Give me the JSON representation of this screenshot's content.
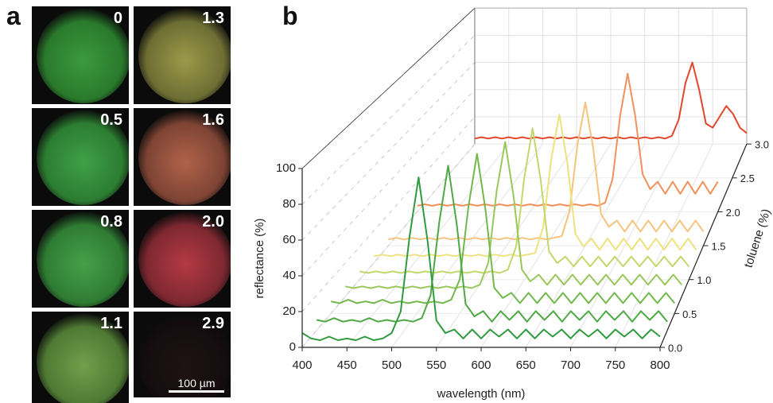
{
  "panel_labels": [
    "a",
    "b"
  ],
  "micrographs": {
    "labels": [
      "0",
      "1.3",
      "0.5",
      "1.6",
      "0.8",
      "2.0",
      "1.1",
      "2.9"
    ],
    "scale_bar": "100 µm"
  },
  "chart_data": {
    "type": "waterfall",
    "xlabel": "wavelength (nm)",
    "ylabel": "reflectance (%)",
    "zlabel": "toluene (%)",
    "xlim": [
      400,
      800
    ],
    "ylim": [
      0,
      100
    ],
    "zlim": [
      0,
      3
    ],
    "xticks": [
      400,
      450,
      500,
      550,
      600,
      650,
      700,
      750,
      800
    ],
    "yticks": [
      0,
      20,
      40,
      60,
      80,
      100
    ],
    "zticks": [
      {
        "value": 0,
        "label": "0.0"
      },
      0.5,
      {
        "value": 1,
        "label": "1.0"
      },
      1.5,
      {
        "value": 2,
        "label": "2.0"
      },
      2.5,
      {
        "value": 3,
        "label": "3.0"
      }
    ],
    "grid": true,
    "x": [
      400,
      410,
      420,
      430,
      440,
      450,
      460,
      470,
      480,
      490,
      500,
      510,
      520,
      530,
      540,
      550,
      560,
      570,
      580,
      590,
      600,
      610,
      620,
      630,
      640,
      650,
      660,
      670,
      680,
      690,
      700,
      710,
      720,
      730,
      740,
      750,
      760,
      770,
      780,
      790,
      800
    ],
    "series": [
      {
        "z": 0,
        "color": "#2f9a3e",
        "values": [
          8,
          5,
          4,
          6,
          4,
          5,
          4,
          6,
          4,
          5,
          8,
          20,
          62,
          95,
          60,
          15,
          8,
          10,
          5,
          10,
          5,
          10,
          6,
          10,
          5,
          10,
          5,
          10,
          6,
          10,
          5,
          10,
          6,
          10,
          5,
          10,
          6,
          10,
          5,
          10,
          6
        ]
      },
      {
        "z": 0.25,
        "color": "#4ea845",
        "values": [
          6,
          5,
          7,
          5,
          6,
          5,
          7,
          5,
          6,
          5,
          6,
          5,
          7,
          20,
          62,
          94,
          60,
          15,
          8,
          11,
          5,
          11,
          6,
          11,
          5,
          11,
          6,
          11,
          5,
          11,
          6,
          11,
          5,
          11,
          6,
          11,
          5,
          11,
          6,
          11,
          5
        ]
      },
      {
        "z": 0.5,
        "color": "#72b84c",
        "values": [
          7,
          6,
          8,
          6,
          7,
          6,
          8,
          6,
          7,
          6,
          7,
          6,
          7,
          6,
          8,
          20,
          62,
          93,
          60,
          15,
          9,
          12,
          6,
          12,
          6,
          12,
          6,
          12,
          6,
          12,
          6,
          12,
          6,
          12,
          6,
          12,
          6,
          12,
          6,
          12,
          6
        ]
      },
      {
        "z": 0.75,
        "color": "#98c85a",
        "values": [
          6,
          5,
          6,
          5,
          6,
          5,
          6,
          5,
          6,
          5,
          6,
          5,
          6,
          5,
          6,
          5,
          7,
          20,
          63,
          92,
          60,
          16,
          9,
          13,
          7,
          13,
          7,
          13,
          7,
          13,
          7,
          13,
          7,
          13,
          7,
          13,
          7,
          13,
          7,
          13,
          7
        ]
      },
      {
        "z": 1,
        "color": "#c2d86c",
        "values": [
          5,
          4,
          5,
          4,
          5,
          4,
          5,
          4,
          5,
          4,
          5,
          4,
          5,
          4,
          5,
          4,
          5,
          4,
          6,
          20,
          62,
          92,
          60,
          17,
          10,
          14,
          8,
          14,
          8,
          14,
          8,
          14,
          8,
          14,
          8,
          14,
          8,
          14,
          8,
          14,
          8
        ]
      },
      {
        "z": 1.25,
        "color": "#ece27e",
        "values": [
          4,
          5,
          4,
          5,
          4,
          5,
          4,
          5,
          4,
          5,
          4,
          5,
          4,
          5,
          4,
          5,
          4,
          5,
          4,
          5,
          6,
          22,
          64,
          92,
          62,
          18,
          10,
          15,
          8,
          15,
          8,
          15,
          8,
          15,
          8,
          15,
          8,
          15,
          8,
          15,
          8
        ]
      },
      {
        "z": 1.5,
        "color": "#f6c37c",
        "values": [
          4,
          5,
          4,
          5,
          4,
          5,
          4,
          5,
          4,
          5,
          4,
          5,
          4,
          5,
          4,
          5,
          4,
          5,
          4,
          5,
          4,
          5,
          6,
          22,
          64,
          91,
          62,
          20,
          12,
          16,
          9,
          16,
          9,
          16,
          9,
          16,
          9,
          16,
          9,
          16,
          9
        ]
      },
      {
        "z": 2,
        "color": "#f0915c",
        "values": [
          4,
          5,
          4,
          5,
          4,
          5,
          4,
          5,
          4,
          5,
          4,
          5,
          4,
          5,
          4,
          5,
          4,
          5,
          4,
          5,
          4,
          5,
          4,
          5,
          4,
          6,
          22,
          64,
          92,
          64,
          25,
          15,
          20,
          12,
          20,
          12,
          20,
          12,
          20,
          12,
          20
        ]
      },
      {
        "z": 3,
        "color": "#e2462c",
        "values": [
          4,
          5,
          4,
          5,
          4,
          5,
          4,
          5,
          4,
          5,
          4,
          5,
          4,
          5,
          4,
          5,
          4,
          5,
          4,
          5,
          4,
          5,
          4,
          5,
          4,
          5,
          4,
          5,
          4,
          6,
          18,
          45,
          60,
          40,
          15,
          12,
          20,
          28,
          22,
          12,
          8
        ]
      }
    ]
  }
}
